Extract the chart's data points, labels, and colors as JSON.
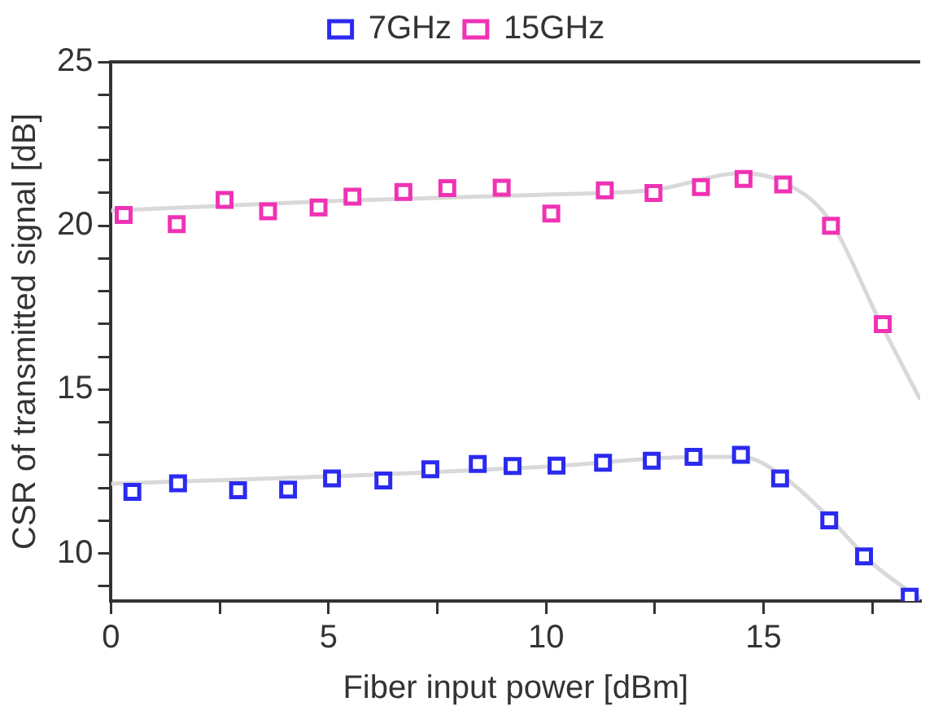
{
  "chart_data": {
    "type": "scatter",
    "xlabel": "Fiber input power [dBm]",
    "ylabel": "CSR of transmitted signal [dB]",
    "xlim": [
      0,
      18.6
    ],
    "ylim": [
      8.55,
      25
    ],
    "xticks": [
      0,
      {
        "value": 2.5,
        "label": null
      },
      5,
      {
        "value": 7.5,
        "label": null
      },
      10,
      {
        "value": 12.5,
        "label": null
      },
      15,
      {
        "value": 17.5,
        "label": null
      }
    ],
    "yticks": [
      {
        "value": 9,
        "label": null
      },
      10,
      {
        "value": 11,
        "label": null
      },
      {
        "value": 12,
        "label": null
      },
      {
        "value": 13,
        "label": null
      },
      {
        "value": 14,
        "label": null
      },
      15,
      {
        "value": 16,
        "label": null
      },
      {
        "value": 17,
        "label": null
      },
      {
        "value": 18,
        "label": null
      },
      {
        "value": 19,
        "label": null
      },
      20,
      {
        "value": 21,
        "label": null
      },
      {
        "value": 22,
        "label": null
      },
      {
        "value": 23,
        "label": null
      },
      {
        "value": 24,
        "label": null
      },
      25
    ],
    "grid": false,
    "legend": "top",
    "series": [
      {
        "name": "7GHz",
        "marker": "square",
        "color": "#2a2af0",
        "x": [
          0.49,
          1.54,
          2.92,
          4.07,
          5.08,
          6.26,
          7.34,
          8.43,
          9.23,
          10.24,
          11.31,
          12.43,
          13.39,
          14.48,
          15.38,
          16.51,
          17.31,
          18.36
        ],
        "values": [
          11.88,
          12.14,
          11.93,
          11.95,
          12.29,
          12.23,
          12.57,
          12.73,
          12.67,
          12.68,
          12.77,
          12.83,
          12.95,
          13.01,
          12.29,
          11.01,
          9.91,
          8.68
        ]
      },
      {
        "name": "15GHz",
        "marker": "square",
        "color": "#f032b4",
        "x": [
          0.29,
          1.51,
          2.61,
          3.61,
          4.77,
          5.55,
          6.72,
          7.73,
          8.98,
          10.12,
          11.35,
          12.47,
          13.56,
          14.54,
          15.45,
          16.55,
          17.74
        ],
        "values": [
          20.33,
          20.05,
          20.79,
          20.44,
          20.56,
          20.89,
          21.03,
          21.15,
          21.16,
          20.37,
          21.08,
          21.0,
          21.18,
          21.43,
          21.26,
          20.0,
          17.0
        ]
      },
      {
        "type": "line",
        "marker": "none",
        "color": "#d9d9d9",
        "x": [
          0,
          5,
          10,
          13.5,
          14.5,
          15.5,
          16.5,
          17.5,
          18.6
        ],
        "values": [
          12.13,
          12.35,
          12.65,
          12.95,
          12.95,
          12.3,
          11.1,
          9.7,
          8.6
        ]
      },
      {
        "type": "line",
        "marker": "none",
        "color": "#d9d9d9",
        "x": [
          0,
          5,
          10,
          12.5,
          14.5,
          15.5,
          16.5,
          17.7,
          18.6
        ],
        "values": [
          20.46,
          20.75,
          20.95,
          21.1,
          21.6,
          21.3,
          20.2,
          17.0,
          14.7
        ]
      }
    ]
  }
}
